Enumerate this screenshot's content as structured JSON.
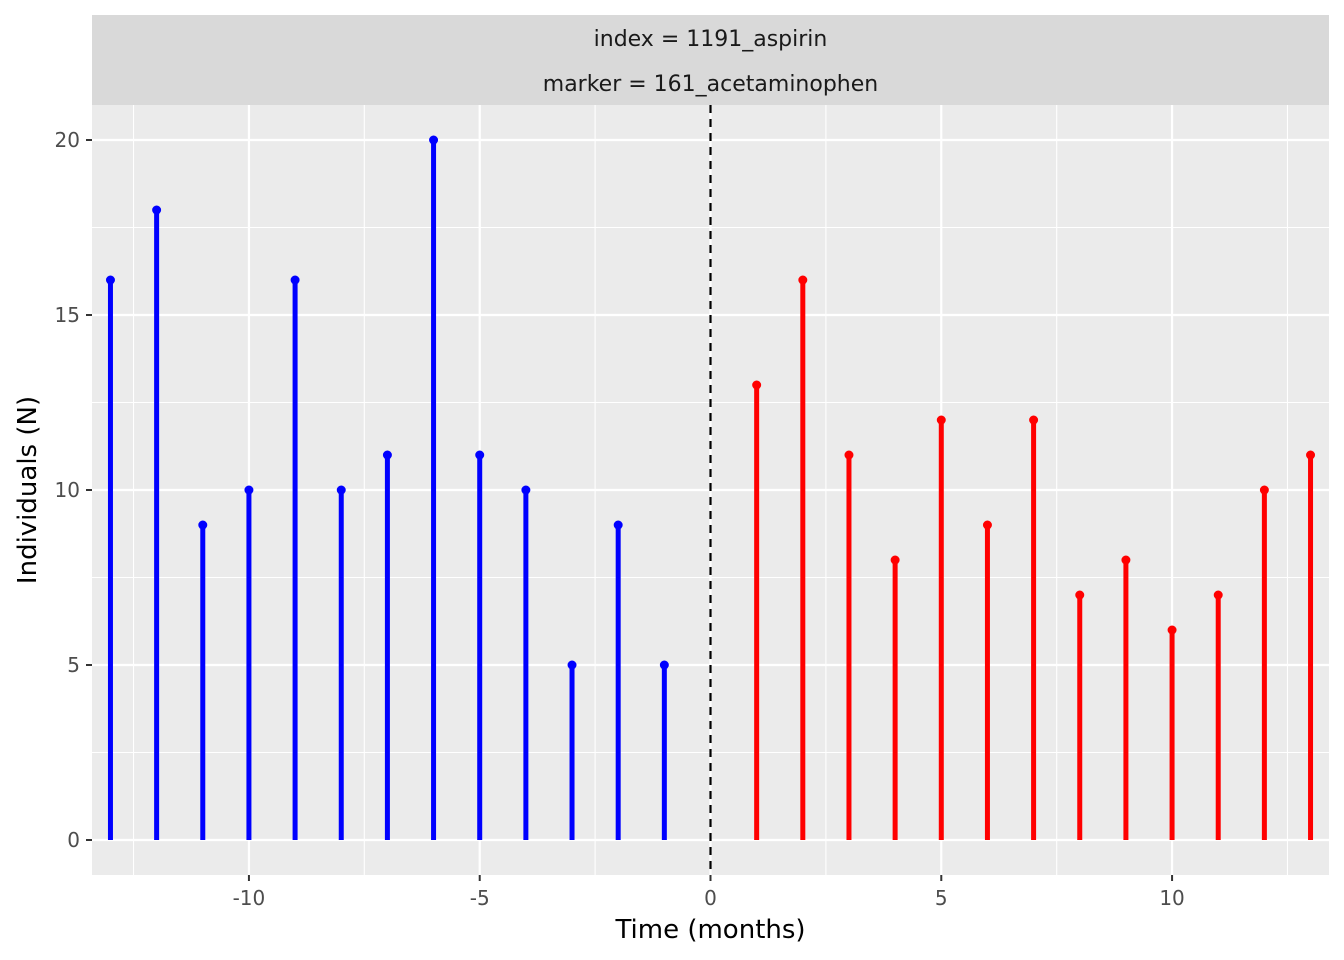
{
  "chart_data": {
    "type": "lollipop",
    "facet_strip": [
      "index = 1191_aspirin",
      "marker = 161_acetaminophen"
    ],
    "xlabel": "Time (months)",
    "ylabel": "Individuals (N)",
    "xlim": [
      -13.4,
      13.4
    ],
    "ylim": [
      -1,
      21
    ],
    "x_ticks": [
      -10,
      -5,
      0,
      5,
      10
    ],
    "x_tick_labels": [
      "-10",
      "-5",
      "0",
      "5",
      "10"
    ],
    "y_ticks": [
      0,
      5,
      10,
      15,
      20
    ],
    "y_tick_labels": [
      "0",
      "5",
      "10",
      "15",
      "20"
    ],
    "reference_line": {
      "x": 0,
      "style": "dashed",
      "color": "#000000"
    },
    "grid": true,
    "series": [
      {
        "color": "#0000ff",
        "x": [
          -13,
          -12,
          -11,
          -10,
          -9,
          -8,
          -7,
          -6,
          -5,
          -4,
          -3,
          -2,
          -1
        ],
        "values": [
          16,
          18,
          9,
          10,
          16,
          10,
          11,
          20,
          11,
          10,
          5,
          9,
          5
        ]
      },
      {
        "color": "#ff0000",
        "x": [
          1,
          2,
          3,
          4,
          5,
          6,
          7,
          8,
          9,
          10,
          11,
          12,
          13
        ],
        "values": [
          13,
          16,
          11,
          8,
          12,
          9,
          12,
          7,
          8,
          6,
          7,
          10,
          11
        ]
      }
    ]
  }
}
